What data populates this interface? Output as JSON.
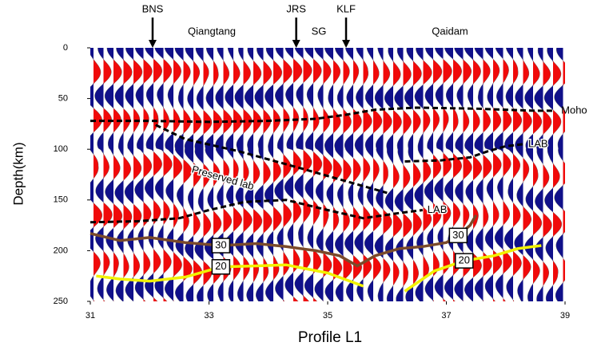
{
  "chart_data": {
    "type": "line",
    "x_label": "Profile L1",
    "y_label": "Depth(km)",
    "xlim": [
      31,
      39
    ],
    "xticks": [
      31,
      33,
      35,
      37,
      39
    ],
    "ylim": [
      250,
      0
    ],
    "yticks": [
      0,
      50,
      100,
      150,
      200,
      250
    ],
    "markers": [
      {
        "label": "BNS",
        "x": 32.05
      },
      {
        "label": "JRS",
        "x": 34.47
      },
      {
        "label": "KLF",
        "x": 35.31
      }
    ],
    "regions": [
      "Qiangtang",
      "SG",
      "Qaidam"
    ],
    "series": [
      {
        "name": "Moho",
        "color": "#000000",
        "dash": true,
        "x": [
          31,
          32,
          33,
          34,
          34.8,
          35.3,
          35.8,
          36.5,
          37.5,
          38.5,
          38.8
        ],
        "values": [
          72,
          72,
          73,
          72,
          70,
          66,
          61,
          59,
          60,
          62,
          62
        ]
      },
      {
        "name": "Preserved lab",
        "color": "#000000",
        "dash": true,
        "x": [
          32.1,
          32.6,
          33.5,
          34.5,
          35.4,
          36
        ],
        "values": [
          76,
          90,
          102,
          118,
          133,
          143
        ]
      },
      {
        "name": "LAB",
        "color": "#000000",
        "dash": true,
        "x": [
          31,
          31.8,
          32.5,
          33,
          33.6,
          34.3,
          35,
          35.6,
          36.2,
          36.6
        ],
        "values": [
          172,
          171,
          168,
          160,
          152,
          150,
          160,
          168,
          163,
          160
        ]
      },
      {
        "name": "LAB",
        "color": "#000000",
        "dash": true,
        "x": [
          36.3,
          36.9,
          37.4,
          37.7,
          38,
          38.3
        ],
        "values": [
          112,
          111,
          108,
          102,
          97,
          95
        ]
      },
      {
        "name": "30",
        "color": "#7a4a2a",
        "dash": false,
        "x": [
          31,
          31.5,
          32,
          32.6,
          33.2,
          33.8,
          34.3,
          34.8,
          35.2,
          35.5,
          35.8,
          36.2
        ],
        "values": [
          183,
          190,
          187,
          192,
          195,
          193,
          196,
          200,
          205,
          215,
          205,
          198
        ]
      },
      {
        "name": "30",
        "color": "#7a4a2a",
        "dash": false,
        "x": [
          36.2,
          36.6,
          37,
          37.2,
          37.4,
          37.5
        ],
        "values": [
          198,
          196,
          192,
          185,
          175,
          165
        ]
      },
      {
        "name": "20",
        "color": "#f2f200",
        "dash": false,
        "x": [
          31.1,
          31.5,
          32,
          32.6,
          33.2,
          33.8,
          34.3,
          35,
          35.6
        ],
        "values": [
          225,
          228,
          230,
          226,
          216,
          215,
          214,
          222,
          235
        ]
      },
      {
        "name": "20",
        "color": "#f2f200",
        "dash": false,
        "x": [
          36.3,
          36.8,
          37.3,
          37.8,
          38.2,
          38.6
        ],
        "values": [
          240,
          220,
          210,
          205,
          198,
          195
        ]
      }
    ]
  }
}
